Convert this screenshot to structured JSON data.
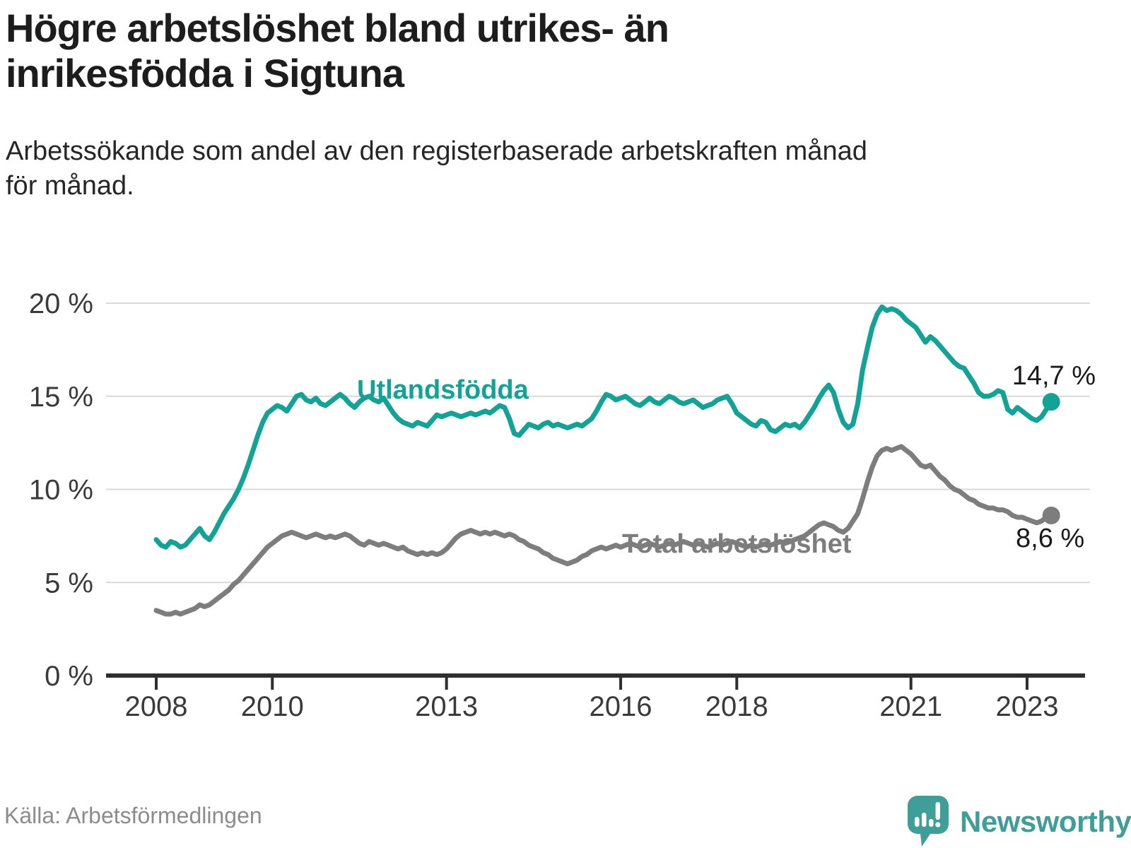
{
  "header": {
    "title_line1": "Högre arbetslöshet bland utrikes- än",
    "title_line2": "inrikesfödda i Sigtuna",
    "subtitle_line1": "Arbetssökande som andel av den registerbaserade arbetskraften månad",
    "subtitle_line2": "för månad."
  },
  "footer": {
    "source": "Källa: Arbetsförmedlingen",
    "brand": "Newsworthy"
  },
  "colors": {
    "series1": "#15a296",
    "series2": "#7d7d7d",
    "grid": "#d9d9d9",
    "axis": "#2e2e2e",
    "tick_label": "#3a3a3a",
    "brand_teal": "#3f9e97"
  },
  "chart_data": {
    "type": "line",
    "title": "Högre arbetslöshet bland utrikes- än inrikesfödda i Sigtuna",
    "subtitle": "Arbetssökande som andel av den registerbaserade arbetskraften månad för månad.",
    "x_unit": "year",
    "x_start_year": 2008,
    "points_per_year": 12,
    "ylim": [
      0,
      20
    ],
    "grid": true,
    "x_ticks": [
      2008,
      2010,
      2013,
      2016,
      2018,
      2021,
      2023
    ],
    "x_tick_labels": [
      "2008",
      "2010",
      "2013",
      "2016",
      "2018",
      "2021",
      "2023"
    ],
    "y_ticks": [
      {
        "value": 0,
        "label": "0 %"
      },
      {
        "value": 5,
        "label": "5 %"
      },
      {
        "value": 10,
        "label": "10 %"
      },
      {
        "value": 15,
        "label": "15 %"
      },
      {
        "value": 20,
        "label": "20 %"
      }
    ],
    "series": [
      {
        "name": "Utlandsfödda",
        "color": "#15a296",
        "end_label": "14,7 %",
        "end_value": 14.7,
        "values": [
          7.3,
          7.0,
          6.9,
          7.2,
          7.1,
          6.9,
          7.0,
          7.3,
          7.6,
          7.9,
          7.5,
          7.3,
          7.7,
          8.2,
          8.7,
          9.1,
          9.5,
          10.0,
          10.6,
          11.3,
          12.1,
          12.9,
          13.6,
          14.1,
          14.3,
          14.5,
          14.4,
          14.2,
          14.6,
          15.0,
          15.1,
          14.8,
          14.7,
          14.9,
          14.6,
          14.5,
          14.7,
          14.9,
          15.1,
          14.9,
          14.6,
          14.4,
          14.7,
          14.9,
          15.0,
          14.8,
          14.7,
          14.9,
          14.5,
          14.1,
          13.8,
          13.6,
          13.5,
          13.4,
          13.6,
          13.5,
          13.4,
          13.7,
          14.0,
          13.9,
          14.0,
          14.1,
          14.0,
          13.9,
          14.0,
          14.1,
          14.0,
          14.1,
          14.2,
          14.1,
          14.3,
          14.5,
          14.4,
          13.8,
          13.0,
          12.9,
          13.2,
          13.5,
          13.4,
          13.3,
          13.5,
          13.6,
          13.4,
          13.5,
          13.4,
          13.3,
          13.4,
          13.5,
          13.4,
          13.6,
          13.8,
          14.2,
          14.7,
          15.1,
          15.0,
          14.8,
          14.9,
          15.0,
          14.8,
          14.6,
          14.5,
          14.7,
          14.9,
          14.7,
          14.6,
          14.8,
          15.0,
          14.9,
          14.7,
          14.6,
          14.7,
          14.8,
          14.6,
          14.4,
          14.5,
          14.6,
          14.8,
          14.9,
          15.0,
          14.6,
          14.1,
          13.9,
          13.7,
          13.5,
          13.4,
          13.7,
          13.6,
          13.2,
          13.1,
          13.3,
          13.5,
          13.4,
          13.5,
          13.3,
          13.6,
          14.0,
          14.4,
          14.9,
          15.3,
          15.6,
          15.2,
          14.3,
          13.6,
          13.3,
          13.5,
          14.6,
          16.4,
          17.6,
          18.7,
          19.4,
          19.8,
          19.6,
          19.7,
          19.6,
          19.4,
          19.1,
          18.9,
          18.7,
          18.3,
          17.9,
          18.2,
          18.0,
          17.7,
          17.4,
          17.1,
          16.8,
          16.6,
          16.5,
          16.1,
          15.7,
          15.2,
          15.0,
          15.0,
          15.1,
          15.3,
          15.2,
          14.3,
          14.1,
          14.4,
          14.2,
          14.0,
          13.8,
          13.7,
          13.9,
          14.3,
          14.7
        ]
      },
      {
        "name": "Total arbetslöshet",
        "color": "#7d7d7d",
        "end_label": "8,6 %",
        "end_value": 8.6,
        "values": [
          3.5,
          3.4,
          3.3,
          3.3,
          3.4,
          3.3,
          3.4,
          3.5,
          3.6,
          3.8,
          3.7,
          3.8,
          4.0,
          4.2,
          4.4,
          4.6,
          4.9,
          5.1,
          5.4,
          5.7,
          6.0,
          6.3,
          6.6,
          6.9,
          7.1,
          7.3,
          7.5,
          7.6,
          7.7,
          7.6,
          7.5,
          7.4,
          7.5,
          7.6,
          7.5,
          7.4,
          7.5,
          7.4,
          7.5,
          7.6,
          7.5,
          7.3,
          7.1,
          7.0,
          7.2,
          7.1,
          7.0,
          7.1,
          7.0,
          6.9,
          6.8,
          6.9,
          6.7,
          6.6,
          6.5,
          6.6,
          6.5,
          6.6,
          6.5,
          6.6,
          6.8,
          7.1,
          7.4,
          7.6,
          7.7,
          7.8,
          7.7,
          7.6,
          7.7,
          7.6,
          7.7,
          7.6,
          7.5,
          7.6,
          7.5,
          7.3,
          7.2,
          7.0,
          6.9,
          6.8,
          6.6,
          6.5,
          6.3,
          6.2,
          6.1,
          6.0,
          6.1,
          6.2,
          6.4,
          6.5,
          6.7,
          6.8,
          6.9,
          6.8,
          6.9,
          7.0,
          6.9,
          7.0,
          7.1,
          7.0,
          6.9,
          7.0,
          7.1,
          7.0,
          6.9,
          7.0,
          7.1,
          7.0,
          7.1,
          7.2,
          7.1,
          7.0,
          7.1,
          7.0,
          6.9,
          7.0,
          7.1,
          7.0,
          7.1,
          7.2,
          7.1,
          7.0,
          6.9,
          7.0,
          6.9,
          7.0,
          7.1,
          7.0,
          7.1,
          7.2,
          7.1,
          7.2,
          7.3,
          7.4,
          7.5,
          7.7,
          7.9,
          8.1,
          8.2,
          8.1,
          8.0,
          7.8,
          7.7,
          7.9,
          8.3,
          8.7,
          9.5,
          10.4,
          11.2,
          11.8,
          12.1,
          12.2,
          12.1,
          12.2,
          12.3,
          12.1,
          11.9,
          11.6,
          11.3,
          11.2,
          11.3,
          11.0,
          10.7,
          10.5,
          10.2,
          10.0,
          9.9,
          9.7,
          9.5,
          9.4,
          9.2,
          9.1,
          9.0,
          9.0,
          8.9,
          8.9,
          8.8,
          8.6,
          8.5,
          8.5,
          8.4,
          8.3,
          8.2,
          8.3,
          8.5,
          8.6
        ]
      }
    ]
  }
}
